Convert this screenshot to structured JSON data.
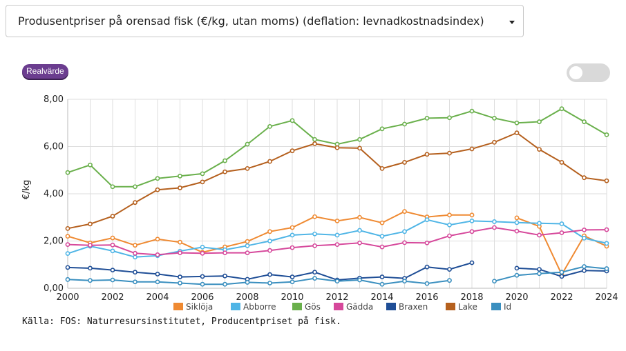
{
  "dropdown": {
    "selected": "Produsentpriser på orensad fisk (€/kg, utan moms) (deflation: levnadkostnadsindex)"
  },
  "badge": {
    "label": "Realvärde"
  },
  "toggle": {
    "on": false
  },
  "source": "Källa: FOS: Naturresursinstitutet, Producentpriset på fisk.",
  "chart_data": {
    "type": "line",
    "ylabel": "€/kg",
    "xlim": [
      2000,
      2024
    ],
    "ylim": [
      0,
      8
    ],
    "x_ticks": [
      "2000",
      "2002",
      "2004",
      "2006",
      "2008",
      "2010",
      "2012",
      "2014",
      "2016",
      "2018",
      "2020",
      "2022",
      "2024"
    ],
    "y_ticks": [
      "0,00",
      "2,00",
      "4,00",
      "6,00",
      "8,00"
    ],
    "grid": true,
    "legend_position": "bottom",
    "x": [
      2000,
      2001,
      2002,
      2003,
      2004,
      2005,
      2006,
      2007,
      2008,
      2009,
      2010,
      2011,
      2012,
      2013,
      2014,
      2015,
      2016,
      2017,
      2018,
      2019,
      2020,
      2021,
      2022,
      2023,
      2024
    ],
    "series": [
      {
        "name": "Siklöja",
        "color": "#ef8a32",
        "values": [
          2.2,
          1.92,
          2.13,
          1.82,
          2.08,
          1.95,
          1.52,
          1.75,
          1.98,
          2.4,
          2.57,
          3.03,
          2.85,
          3.0,
          2.77,
          3.25,
          3.02,
          3.1,
          3.1,
          null,
          2.98,
          2.62,
          0.58,
          2.22,
          1.78
        ]
      },
      {
        "name": "Abborre",
        "color": "#4fb5e6",
        "values": [
          1.47,
          1.78,
          1.58,
          1.32,
          1.38,
          1.57,
          1.74,
          1.63,
          1.8,
          2.0,
          2.25,
          2.3,
          2.25,
          2.45,
          2.2,
          2.4,
          2.9,
          2.68,
          2.85,
          2.82,
          2.78,
          2.75,
          2.73,
          2.12,
          1.9
        ]
      },
      {
        "name": "Gös",
        "color": "#6ab04c",
        "values": [
          4.9,
          5.22,
          4.3,
          4.3,
          4.65,
          4.75,
          4.85,
          5.4,
          6.1,
          6.85,
          7.1,
          6.3,
          6.1,
          6.3,
          6.75,
          6.95,
          7.2,
          7.22,
          7.5,
          7.2,
          7.0,
          7.05,
          7.6,
          7.05,
          6.5
        ]
      },
      {
        "name": "Gädda",
        "color": "#d6489b",
        "values": [
          1.85,
          1.82,
          1.83,
          1.48,
          1.42,
          1.5,
          1.48,
          1.5,
          1.5,
          1.6,
          1.72,
          1.8,
          1.85,
          1.92,
          1.75,
          1.93,
          1.92,
          2.22,
          2.4,
          2.57,
          2.42,
          2.25,
          2.35,
          2.47,
          2.48
        ]
      },
      {
        "name": "Braxen",
        "color": "#1f4e96",
        "values": [
          0.88,
          0.85,
          0.77,
          0.68,
          0.6,
          0.48,
          0.5,
          0.52,
          0.38,
          0.58,
          0.48,
          0.68,
          0.35,
          0.43,
          0.48,
          0.42,
          0.9,
          0.8,
          1.08,
          null,
          0.85,
          0.8,
          0.5,
          0.75,
          0.73
        ]
      },
      {
        "name": "Lake",
        "color": "#b5601e",
        "values": [
          2.53,
          2.72,
          3.05,
          3.63,
          4.17,
          4.25,
          4.5,
          4.93,
          5.07,
          5.37,
          5.82,
          6.12,
          5.95,
          5.93,
          5.07,
          5.33,
          5.67,
          5.72,
          5.9,
          6.18,
          6.58,
          5.88,
          5.33,
          4.68,
          4.55
        ]
      },
      {
        "name": "Id",
        "color": "#3a8fbf",
        "values": [
          0.37,
          0.33,
          0.35,
          0.27,
          0.27,
          0.22,
          0.17,
          0.17,
          0.25,
          0.22,
          0.27,
          0.42,
          0.3,
          0.35,
          0.17,
          0.3,
          0.2,
          0.33,
          null,
          0.3,
          0.55,
          0.62,
          0.68,
          0.92,
          0.83
        ]
      }
    ]
  }
}
